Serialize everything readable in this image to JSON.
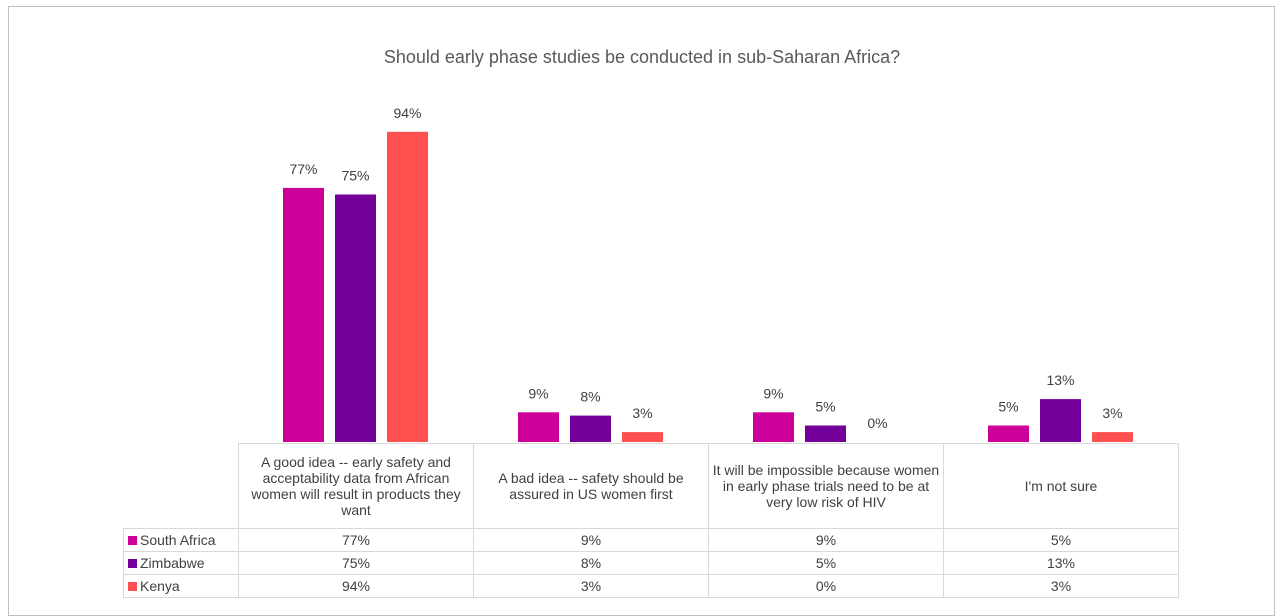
{
  "chart_data": {
    "type": "bar",
    "title": "Should early phase studies be conducted in sub-Saharan Africa?",
    "categories": [
      "A good idea -- early safety and acceptability data from African women will result in products they want",
      "A bad idea -- safety should be assured in US women first",
      "It will be impossible because women in early phase trials need to be at very low risk of HIV",
      "I'm not sure"
    ],
    "series": [
      {
        "name": "South Africa",
        "color": "#cc0099",
        "values": [
          77,
          9,
          9,
          5
        ],
        "labels": [
          "77%",
          "9%",
          "9%",
          "5%"
        ]
      },
      {
        "name": "Zimbabwe",
        "color": "#720099",
        "values": [
          75,
          8,
          5,
          13
        ],
        "labels": [
          "75%",
          "8%",
          "5%",
          "13%"
        ]
      },
      {
        "name": "Kenya",
        "color": "#ff5050",
        "values": [
          94,
          3,
          0,
          3
        ],
        "labels": [
          "94%",
          "3%",
          "0%",
          "3%"
        ]
      }
    ],
    "ylim": [
      0,
      100
    ],
    "grid": false,
    "legend": "data-table"
  }
}
